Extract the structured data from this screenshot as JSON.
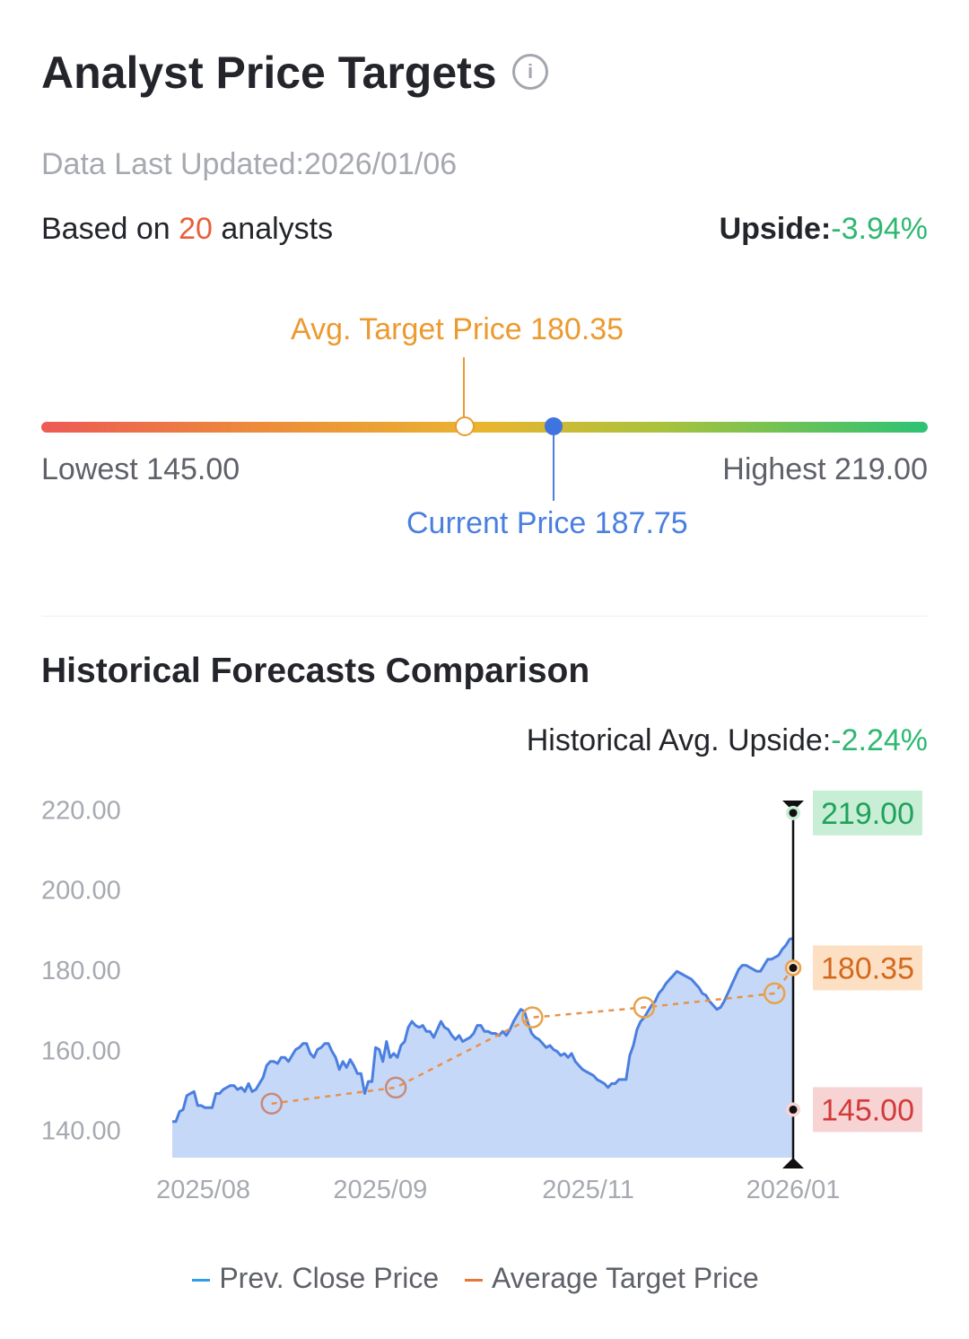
{
  "header": {
    "title": "Analyst Price Targets",
    "info_icon": "info-icon",
    "updated": "Data Last Updated:2026/01/06",
    "based_prefix": "Based on ",
    "analyst_count": "20",
    "based_suffix": " analysts",
    "upside_label": "Upside:",
    "upside_value": "-3.94%"
  },
  "gauge": {
    "avg_label": "Avg. Target Price 180.35",
    "current_label": "Current Price 187.75",
    "lowest_label": "Lowest 145.00",
    "highest_label": "Highest 219.00",
    "low": 145.0,
    "high": 219.0,
    "avg": 180.35,
    "current": 187.75,
    "colors": {
      "low": "#ec5a55",
      "mid": "#e9b530",
      "high": "#2dc274",
      "avg": "#ec9a2f",
      "current": "#3f73e0"
    }
  },
  "history": {
    "title": "Historical Forecasts Comparison",
    "upside_label": "Historical Avg. Upside:",
    "upside_value": "-2.24%"
  },
  "chart_data": {
    "type": "line",
    "x_ticks": [
      "2025/08",
      "2025/09",
      "2025/11",
      "2026/01"
    ],
    "y_ticks": [
      "220.00",
      "200.00",
      "180.00",
      "160.00",
      "140.00"
    ],
    "ylim": [
      133,
      223
    ],
    "series": [
      {
        "name": "Prev. Close Price",
        "style": "area",
        "color": "#4a7fe0",
        "values": [
          142,
          142,
          144.5,
          145,
          148.5,
          149,
          149.5,
          146,
          146,
          145.5,
          145.5,
          145.5,
          149,
          149,
          150,
          150.5,
          151,
          151,
          150,
          150.5,
          149.5,
          151.5,
          149.5,
          150,
          151.5,
          153,
          156,
          157,
          157,
          156.5,
          158,
          158,
          157,
          158.5,
          160,
          160.5,
          161.5,
          161.5,
          159,
          158,
          160,
          160.5,
          161.5,
          161.5,
          159.5,
          158,
          155,
          157,
          155.5,
          157.5,
          156,
          154,
          154,
          149,
          152,
          152,
          160.5,
          160,
          157,
          162,
          158,
          159,
          158,
          161,
          162,
          165.5,
          167,
          166,
          165.5,
          166,
          164.5,
          164.5,
          163,
          165,
          167,
          165.5,
          165,
          163.5,
          162.5,
          163.5,
          162,
          162.5,
          163,
          164,
          166,
          166,
          164.5,
          164.5,
          164,
          164,
          163.5,
          164.5,
          163.5,
          165,
          167,
          168.5,
          170,
          169.5,
          166.5,
          164,
          163,
          162.5,
          161.5,
          160.5,
          161,
          160,
          159.5,
          158.5,
          159,
          158,
          159,
          157,
          156,
          155,
          154.5,
          154,
          153.5,
          152.5,
          152,
          151.5,
          150.5,
          151.5,
          151.5,
          152.5,
          152.5,
          152.5,
          158.5,
          161,
          165,
          167,
          168,
          169.5,
          171,
          172,
          174,
          175,
          176.5,
          177.5,
          178.5,
          179.5,
          179,
          178.5,
          178,
          177.5,
          176.5,
          175.5,
          174,
          173.5,
          172,
          171,
          170,
          170.5,
          172,
          174,
          176,
          178,
          180,
          181,
          181,
          180.5,
          180,
          179.5,
          179.5,
          181,
          182.5,
          182.5,
          183,
          183.5,
          185,
          186,
          187.5,
          187.75
        ]
      },
      {
        "name": "Average Target Price",
        "style": "dashed-markers",
        "color": "#e8924a",
        "points": [
          [
            0.16,
            146.5
          ],
          [
            0.36,
            150.5
          ],
          [
            0.58,
            168
          ],
          [
            0.76,
            170.5
          ],
          [
            0.97,
            174
          ],
          [
            1.0,
            180.35
          ]
        ]
      }
    ],
    "markers": [
      {
        "label": "219.00",
        "value": 219.0,
        "color": "#20a15a",
        "bg": "#c8eed6"
      },
      {
        "label": "180.35",
        "value": 180.35,
        "color": "#d2691e",
        "bg": "#fde0c3"
      },
      {
        "label": "145.00",
        "value": 145.0,
        "color": "#d23a3a",
        "bg": "#f8d3d3"
      }
    ],
    "legend": [
      "Prev. Close Price",
      "Average Target Price"
    ]
  }
}
